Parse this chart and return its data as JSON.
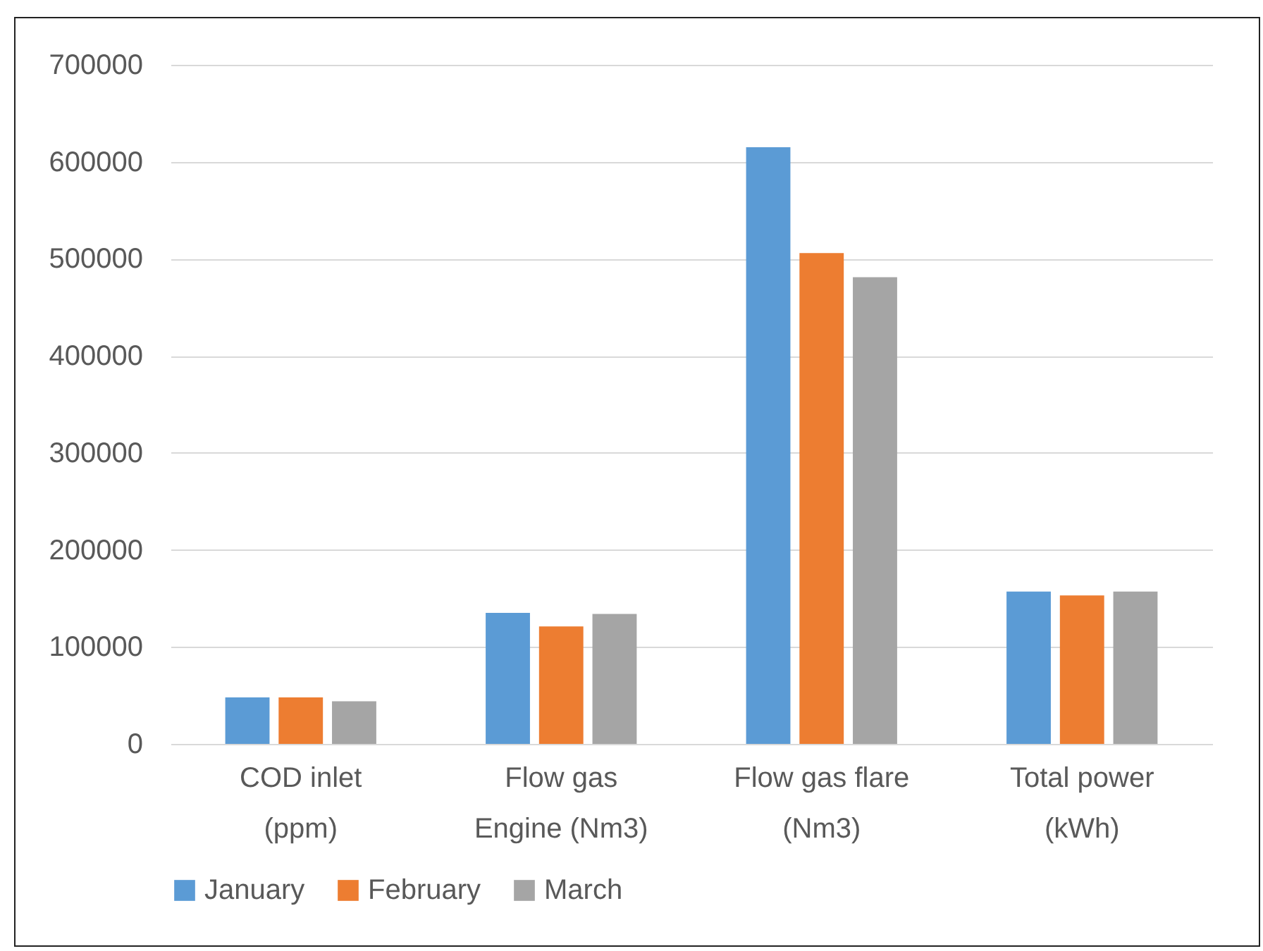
{
  "chart_data": {
    "type": "bar",
    "categories": [
      "COD inlet (ppm)",
      "Flow gas Engine (Nm3)",
      "Flow gas flare (Nm3)",
      "Total power (kWh)"
    ],
    "series": [
      {
        "name": "January",
        "color": "#5b9bd5",
        "values": [
          48000,
          135000,
          615000,
          157000
        ]
      },
      {
        "name": "February",
        "color": "#ed7d31",
        "values": [
          48000,
          121000,
          506000,
          153000
        ]
      },
      {
        "name": "March",
        "color": "#a5a5a5",
        "values": [
          44000,
          134000,
          481000,
          157000
        ]
      }
    ],
    "ylim": [
      0,
      700000
    ],
    "yticks": [
      0,
      100000,
      200000,
      300000,
      400000,
      500000,
      600000,
      700000
    ],
    "grid": "y",
    "legend": "bottom"
  }
}
